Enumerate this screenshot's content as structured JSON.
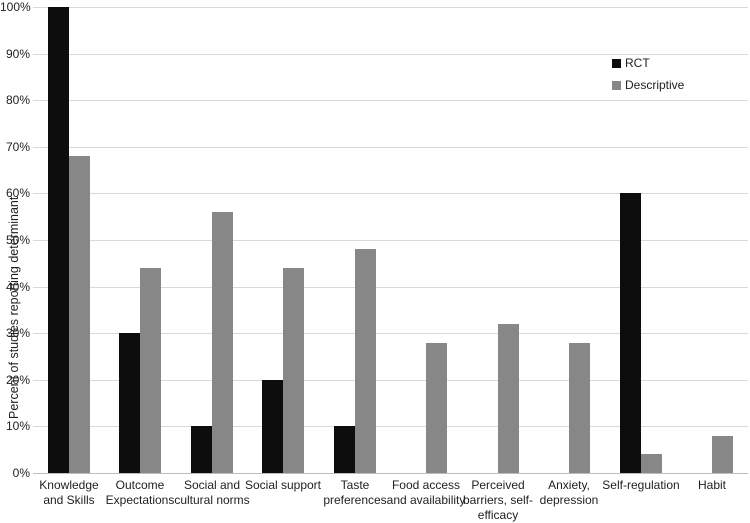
{
  "chart_data": {
    "type": "bar",
    "title": "",
    "xlabel": "",
    "ylabel": "Percent of studies reporting determinant",
    "ylim": [
      0,
      100
    ],
    "ytick_step": 10,
    "yticks": [
      "0%",
      "10%",
      "20%",
      "30%",
      "40%",
      "50%",
      "60%",
      "70%",
      "80%",
      "90%",
      "100%"
    ],
    "grid": "horizontal",
    "legend_position": "upper-right",
    "categories": [
      "Knowledge and Skills",
      "Outcome Expectations",
      "Social and cultural norms",
      "Social support",
      "Taste preferences",
      "Food access and availability",
      "Perceived barriers, self-efficacy",
      "Anxiety, depression",
      "Self-regulation",
      "Habit"
    ],
    "categories_display": [
      "Knowledge\nand Skills",
      "Outcome\nExpectations",
      "Social and\ncultural norms",
      "Social support",
      "Taste\npreferences",
      "Food access\nand availability",
      "Perceived\nbarriers, self-\nefficacy",
      "Anxiety,\ndepression",
      "Self-regulation",
      "Habit"
    ],
    "series": [
      {
        "name": "RCT",
        "color": "#0d0d0d",
        "values": [
          100,
          30,
          10,
          20,
          10,
          0,
          0,
          0,
          60,
          0
        ]
      },
      {
        "name": "Descriptive",
        "color": "#878787",
        "values": [
          68,
          44,
          56,
          44,
          48,
          28,
          32,
          28,
          4,
          8
        ]
      }
    ],
    "colors": {
      "rct_bar": "#0d0d0d",
      "descriptive_bar": "#878787",
      "gridline": "#d9d9d9",
      "axis_line": "#bdbdbd",
      "text": "#1f1f1f"
    }
  }
}
